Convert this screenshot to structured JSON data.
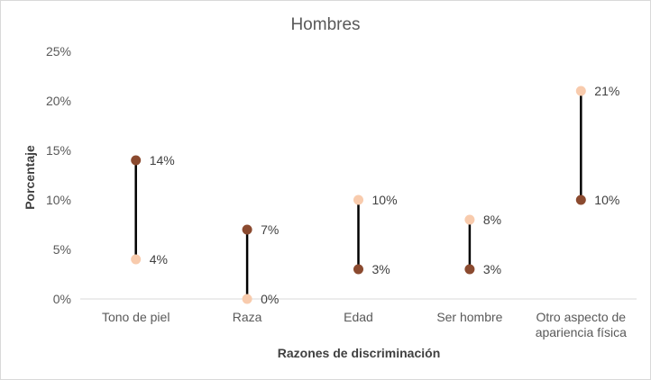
{
  "chart_data": {
    "type": "dumbbell",
    "title": "Hombres",
    "xlabel": "Razones de discriminación",
    "ylabel": "Porcentaje",
    "ylim": [
      0,
      25
    ],
    "yticks": [
      0,
      5,
      10,
      15,
      20,
      25
    ],
    "ytick_labels": [
      "0%",
      "5%",
      "10%",
      "15%",
      "20%",
      "25%"
    ],
    "grid": false,
    "categories": [
      [
        "Tono de piel"
      ],
      [
        "Raza"
      ],
      [
        "Edad"
      ],
      [
        "Ser hombre"
      ],
      [
        "Otro aspecto de",
        "apariencia física"
      ]
    ],
    "series": [
      {
        "color": "#8B4A2F",
        "values": [
          14,
          7,
          3,
          3,
          10
        ],
        "labels": [
          "14%",
          "7%",
          "3%",
          "3%",
          "10%"
        ]
      },
      {
        "color": "#F8CBAD",
        "values": [
          4,
          0,
          10,
          8,
          21
        ],
        "labels": [
          "4%",
          "0%",
          "10%",
          "8%",
          "21%"
        ]
      }
    ],
    "connector_color": "#000000"
  }
}
